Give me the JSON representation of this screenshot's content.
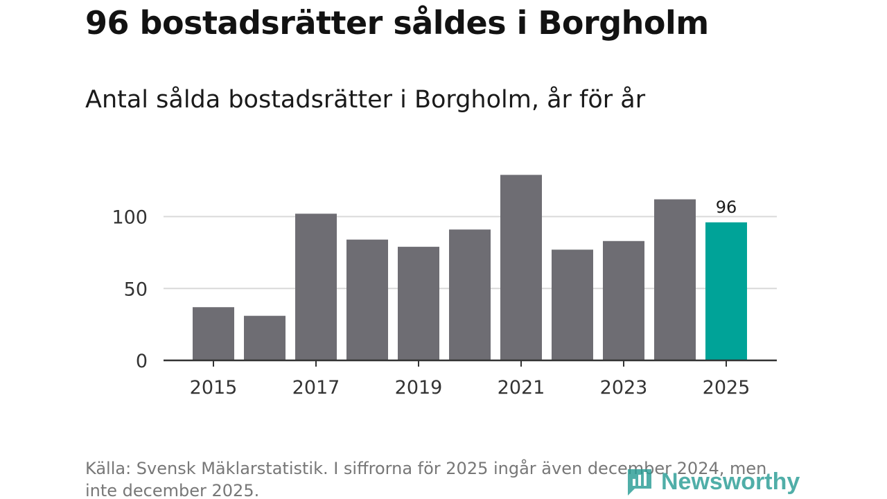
{
  "header": {
    "title": "96 bostadsrätter såldes i Borgholm",
    "subtitle": "Antal sålda bostadsrätter i Borgholm, år för år"
  },
  "footer": {
    "source": "Källa: Svensk Mäklarstatistik. I siffrorna för 2025 ingår även december 2024, men inte december 2025."
  },
  "brand": {
    "name": "Newsworthy"
  },
  "colors": {
    "bar": "#6e6d73",
    "highlight": "#00a398",
    "grid": "#d9d9d9",
    "axis": "#333333",
    "brand": "#2a9d95"
  },
  "chart_data": {
    "type": "bar",
    "title": "96 bostadsrätter såldes i Borgholm",
    "subtitle": "Antal sålda bostadsrätter i Borgholm, år för år",
    "xlabel": "",
    "ylabel": "",
    "categories": [
      "2015",
      "2016",
      "2017",
      "2018",
      "2019",
      "2020",
      "2021",
      "2022",
      "2023",
      "2024",
      "2025"
    ],
    "values": [
      37,
      31,
      102,
      84,
      79,
      91,
      129,
      77,
      83,
      112,
      96
    ],
    "highlight_index": 10,
    "highlight_label": "96",
    "x_tick_labels": [
      "2015",
      "",
      "2017",
      "",
      "2019",
      "",
      "2021",
      "",
      "2023",
      "",
      "2025"
    ],
    "y_ticks": [
      0,
      50,
      100
    ],
    "y_tick_labels": [
      "0",
      "50",
      "100"
    ],
    "ylim": [
      0,
      129
    ],
    "grid": true
  }
}
